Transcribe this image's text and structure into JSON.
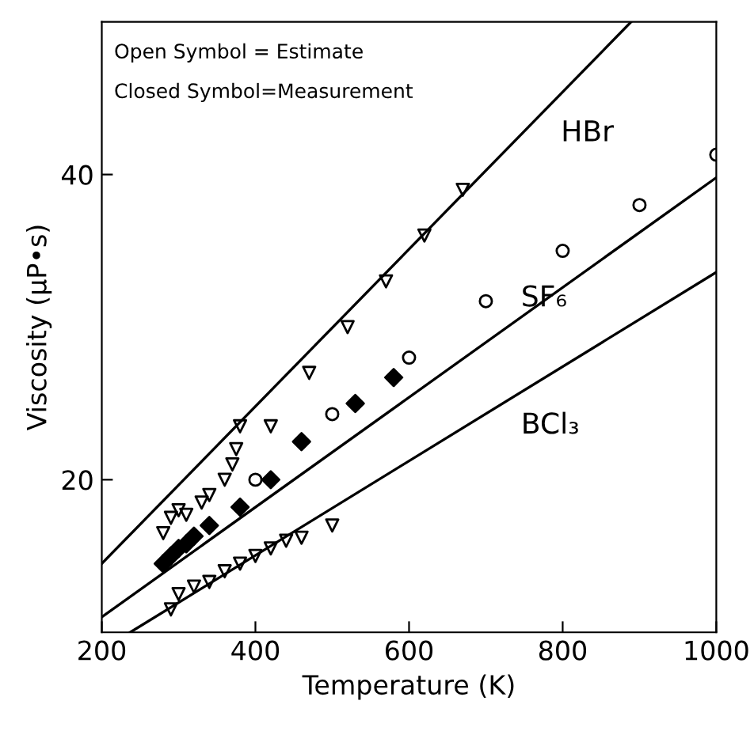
{
  "chart_data": {
    "type": "scatter",
    "xlabel": "Temperature (K)",
    "ylabel": "Viscosity (μP•s)",
    "xlim": [
      200,
      1000
    ],
    "ylim": [
      10,
      50
    ],
    "xticks": [
      200,
      400,
      600,
      800,
      1000
    ],
    "yticks": [
      20,
      40
    ],
    "grid": false,
    "legend": false,
    "annotations": [
      "Open Symbol = Estimate",
      "Closed Symbol=Measurement"
    ],
    "series": [
      {
        "name": "HBr",
        "type": "line",
        "color": "#000000",
        "marker": "none",
        "x": [
          200,
          889
        ],
        "values": [
          14.5,
          50
        ]
      },
      {
        "name": "SF₆",
        "type": "line",
        "color": "#000000",
        "marker": "none",
        "x": [
          200,
          1000
        ],
        "values": [
          11.0,
          39.8
        ]
      },
      {
        "name": "BCl₃",
        "type": "line",
        "color": "#000000",
        "marker": "none",
        "x": [
          237,
          1000
        ],
        "values": [
          10,
          33.6
        ]
      },
      {
        "color": "#000000",
        "marker": "triangle",
        "x": [
          280,
          290,
          300,
          310,
          330,
          340,
          360,
          370,
          375,
          380,
          420,
          470,
          520,
          570,
          620,
          670
        ],
        "values": [
          16.5,
          17.5,
          18,
          17.7,
          18.5,
          19,
          20,
          21,
          22,
          23.5,
          23.5,
          27,
          30,
          33,
          36,
          39
        ]
      },
      {
        "color": "#000000",
        "marker": "diamond",
        "x": [
          280,
          290,
          300,
          310,
          320,
          340,
          380,
          420,
          460,
          530,
          580
        ],
        "values": [
          14.5,
          15,
          15.5,
          15.8,
          16.3,
          17,
          18.2,
          20,
          22.5,
          25,
          26.7
        ]
      },
      {
        "color": "#000000",
        "marker": "circle",
        "x": [
          400,
          500,
          600,
          700,
          800,
          900,
          1000
        ],
        "values": [
          20,
          24.3,
          28,
          31.7,
          35,
          38,
          41.3
        ]
      },
      {
        "color": "#000000",
        "marker": "triangle",
        "x": [
          290,
          300,
          320,
          340,
          360,
          380,
          400,
          420,
          440,
          460,
          500
        ],
        "values": [
          11.5,
          12.5,
          13,
          13.3,
          14,
          14.5,
          15,
          15.5,
          16,
          16.2,
          17
        ]
      }
    ]
  }
}
